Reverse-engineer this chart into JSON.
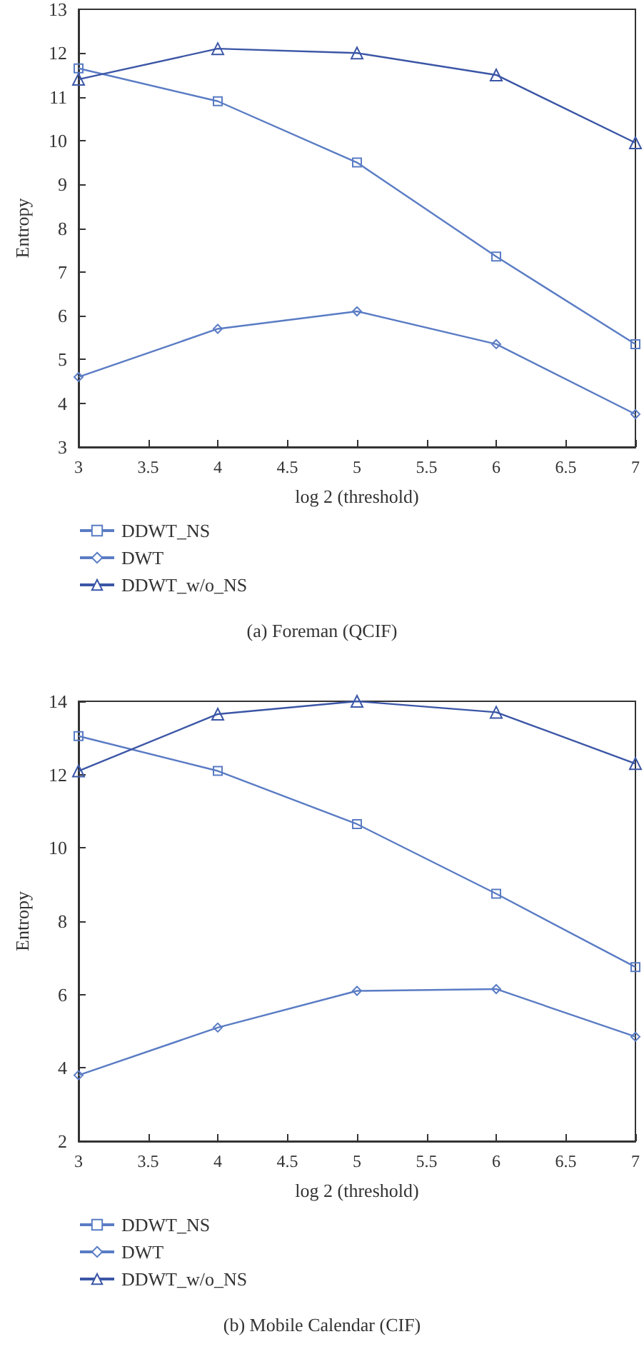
{
  "chart_data": [
    {
      "type": "line",
      "title": "(a) Foreman (QCIF)",
      "xlabel": "log 2 (threshold)",
      "ylabel": "Entropy",
      "x": [
        3,
        4,
        5,
        6,
        7
      ],
      "xlim": [
        3,
        7
      ],
      "xticks": [
        3,
        3.5,
        4,
        4.5,
        5,
        5.5,
        6,
        6.5,
        7
      ],
      "ylim": [
        3,
        13
      ],
      "yticks": [
        3,
        4,
        5,
        6,
        7,
        8,
        9,
        10,
        11,
        12,
        13
      ],
      "grid": false,
      "legend": "bottom left",
      "line_style": "solid",
      "series": [
        {
          "name": "DDWT_NS",
          "color": "#5a7cc4",
          "marker": "square",
          "values": [
            11.65,
            10.9,
            9.5,
            7.35,
            5.35
          ]
        },
        {
          "name": "DWT",
          "color": "#5a7cc4",
          "marker": "diamond",
          "values": [
            4.6,
            5.7,
            6.1,
            5.35,
            3.75
          ]
        },
        {
          "name": "DDWT_w/o_NS",
          "color": "#3b56a6",
          "marker": "triangle",
          "values": [
            11.4,
            12.1,
            12.0,
            11.5,
            9.95
          ]
        }
      ]
    },
    {
      "type": "line",
      "title": "(b) Mobile Calendar (CIF)",
      "xlabel": "log 2 (threshold)",
      "ylabel": "Entropy",
      "x": [
        3,
        4,
        5,
        6,
        7
      ],
      "xlim": [
        3,
        7
      ],
      "xticks": [
        3,
        3.5,
        4,
        4.5,
        5,
        5.5,
        6,
        6.5,
        7
      ],
      "ylim": [
        2,
        14
      ],
      "yticks": [
        2,
        4,
        6,
        8,
        10,
        12,
        14
      ],
      "grid": false,
      "legend": "bottom left",
      "line_style": "solid",
      "series": [
        {
          "name": "DDWT_NS",
          "color": "#5a7cc4",
          "marker": "square",
          "values": [
            13.05,
            12.1,
            10.65,
            8.75,
            6.75
          ]
        },
        {
          "name": "DWT",
          "color": "#5a7cc4",
          "marker": "diamond",
          "values": [
            3.8,
            5.1,
            6.1,
            6.15,
            4.85
          ]
        },
        {
          "name": "DDWT_w/o_NS",
          "color": "#3b56a6",
          "marker": "triangle",
          "values": [
            12.1,
            13.65,
            14.0,
            13.7,
            12.3
          ]
        }
      ]
    }
  ]
}
